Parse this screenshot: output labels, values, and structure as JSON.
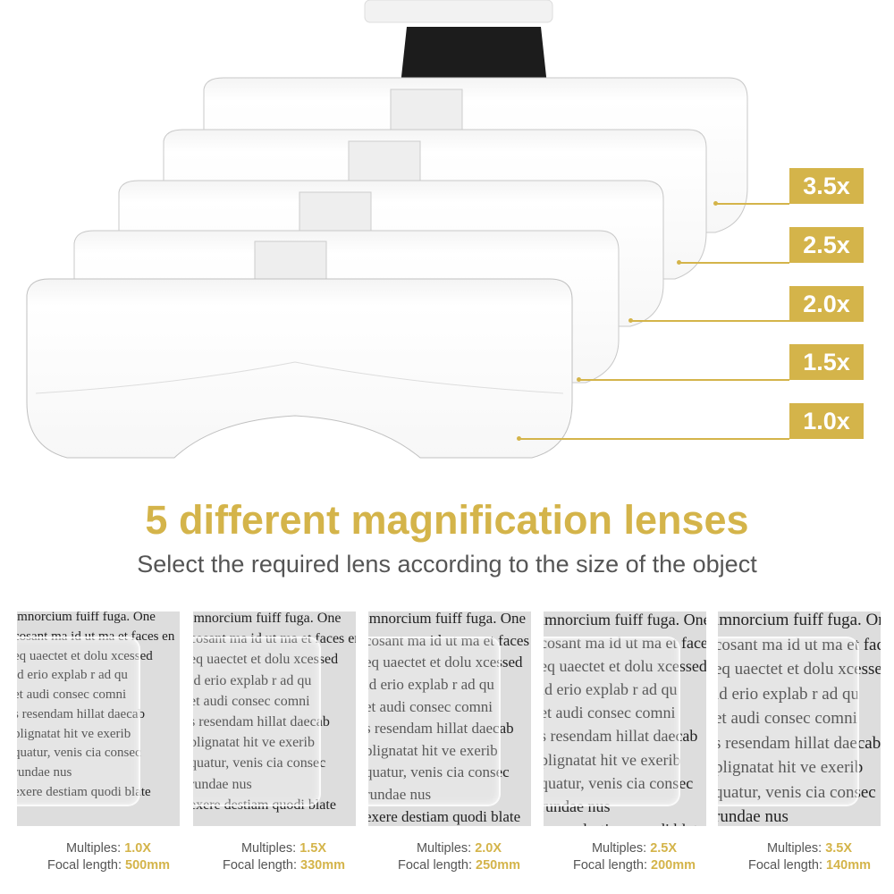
{
  "colors": {
    "accent": "#d4b44a",
    "subtitle": "#555555"
  },
  "magnification_tags": [
    "3.5x",
    "2.5x",
    "2.0x",
    "1.5x",
    "1.0x"
  ],
  "headline": "5 different magnification lenses",
  "subtitle": "Select the required lens according to the size of the object",
  "sample_text_lines": [
    "imnorcium fuiff fuga. One",
    "cosant ma id ut ma et faces en",
    "eq uaectet et dolu xcessed",
    "id erio explab r ad qu",
    "et audi consec comni",
    "s resendam hillat daecab",
    "plignatat hit ve exerib",
    "quatur, venis cia consec",
    "rundae nus",
    "exere destiam quodi blate"
  ],
  "specs": [
    {
      "multiples_label": "Multiples:",
      "multiples": "1.0X",
      "focal_label": "Focal length:",
      "focal": "500mm"
    },
    {
      "multiples_label": "Multiples:",
      "multiples": "1.5X",
      "focal_label": "Focal length:",
      "focal": "330mm"
    },
    {
      "multiples_label": "Multiples:",
      "multiples": "2.0X",
      "focal_label": "Focal length:",
      "focal": "250mm"
    },
    {
      "multiples_label": "Multiples:",
      "multiples": "2.5X",
      "focal_label": "Focal length:",
      "focal": "200mm"
    },
    {
      "multiples_label": "Multiples:",
      "multiples": "3.5X",
      "focal_label": "Focal length:",
      "focal": "140mm"
    }
  ]
}
